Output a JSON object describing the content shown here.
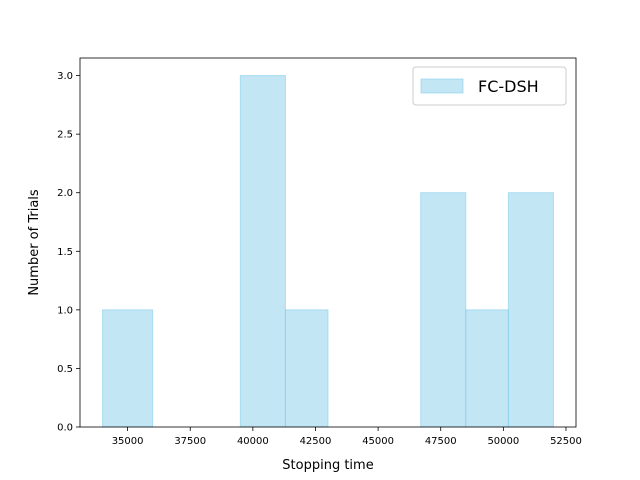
{
  "chart_data": {
    "type": "bar",
    "subtype": "histogram",
    "title": "",
    "xlabel": "Stopping time",
    "ylabel": "Number of Trials",
    "xlim": [
      33100,
      52900
    ],
    "ylim": [
      0,
      3.15
    ],
    "xticks": [
      35000,
      37500,
      40000,
      42500,
      45000,
      47500,
      50000,
      52500
    ],
    "yticks": [
      0.0,
      0.5,
      1.0,
      1.5,
      2.0,
      2.5,
      3.0
    ],
    "grid": false,
    "legend_position": "top-right",
    "series": [
      {
        "name": "FC-DSH",
        "color": "#87ceeb",
        "bins": [
          {
            "x0": 34000,
            "x1": 36000,
            "count": 1
          },
          {
            "x0": 36000,
            "x1": 37800,
            "count": 0
          },
          {
            "x0": 37800,
            "x1": 39500,
            "count": 0
          },
          {
            "x0": 39500,
            "x1": 41300,
            "count": 3
          },
          {
            "x0": 41300,
            "x1": 43000,
            "count": 1
          },
          {
            "x0": 43000,
            "x1": 44800,
            "count": 0
          },
          {
            "x0": 44800,
            "x1": 46700,
            "count": 0
          },
          {
            "x0": 46700,
            "x1": 48500,
            "count": 2
          },
          {
            "x0": 48500,
            "x1": 50200,
            "count": 1
          },
          {
            "x0": 50200,
            "x1": 52000,
            "count": 2
          }
        ]
      }
    ]
  }
}
